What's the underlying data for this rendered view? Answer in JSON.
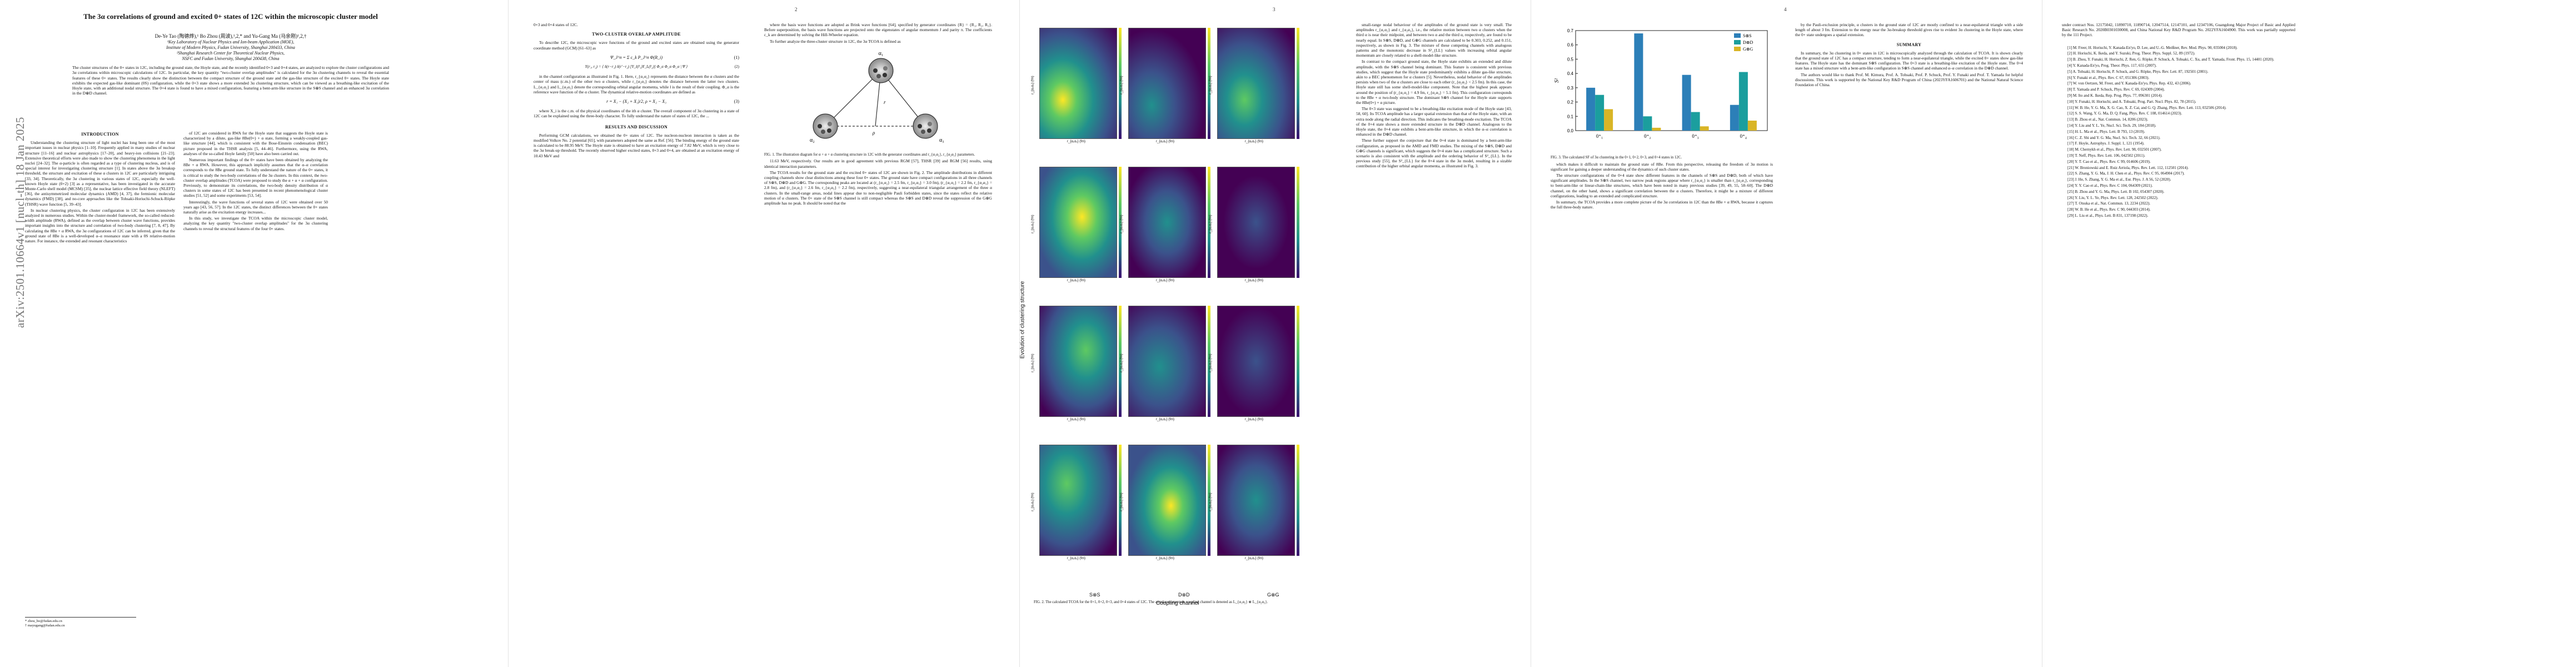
{
  "arxiv_id": "arXiv:2501.10664v1 [nucl-th] 18 Jan 2025",
  "title": "The 3α correlations of ground and excited 0+ states of 12C within the microscopic cluster model",
  "authors": "De-Ye Tao (陶德烨),¹ Bo Zhou (周波),¹,2,* and Yu-Gang Ma (马余刚)¹,2,†",
  "affiliations": [
    "¹Key Laboratory of Nuclear Physics and Ion-beam Application (MOE),",
    "Institute of Modern Physics, Fudan University, Shanghai 200433, China",
    "²Shanghai Research Center for Theoretical Nuclear Physics,",
    "NSFC and Fudan University, Shanghai 200438, China"
  ],
  "abstract": "The cluster structures of the 0+ states in 12C, including the ground state, the Hoyle state, and the recently identified 0+3 and 0+4 states, are analyzed to explore the cluster configurations and 3α correlations within microscopic calculations of 12C. In particular, the key quantity \"two-cluster overlap amplitudes\" is calculated for the 3α clustering channels to reveal the essential features of these 0+ states. The results clearly show the distinction between the compact structure of the ground state and the gas-like structure of the excited 0+ states. The Hoyle state exhibits the expected gas-like dominant (0S) configuration, while the 0+3 state shows a more extended 3α clustering structure, which can be viewed as a breathing-like excitation of the Hoyle state, with an additional nodal structure. The 0+4 state is found to have a mixed configuration, featuring a bent-arm-like structure in the S⊗S channel and an enhanced 3α correlation in the D⊗D channel.",
  "pages": [
    "2",
    "3",
    "4",
    ""
  ],
  "page1": {
    "intro_heading": "INTRODUCTION",
    "intro_paragraphs": [
      "Understanding the clustering structure of light nuclei has long been one of the most important issues in nuclear physics [1–10]. Frequently applied in many studies of nuclear structure [11–16] and nuclear astrophysics [17–20], and heavy-ion collisions [21–23]. Extensive theoretical efforts were also made to show the clustering phenomena in the light nuclei [24–32]. The α-particle is often regarded as a type of clustering nucleus, and is of special interest for investigating clustering structure [1]. In states above the 3α breakup threshold, the structure and excitation of these α clusters in 12C are particularly intriguing [33, 34]. Theoretically, the 3α clustering in various states of 12C, especially the well-known Hoyle state (0+2) [3] as a representative, has been investigated in the accurate Monte-Carlo shell model (MCSM) [35], the nuclear lattice effective field theory (NLEFT) [36], the antisymmetrized molecular dynamics (AMD) [4, 37], the fermionic molecular dynamics (FMD) [38], and no-core approaches like the Tohsaki-Horiuchi-Schuck-Röpke (THSR) wave function [5, 39–43].",
      "In nuclear clustering physics, the cluster configuration in 12C has been extensively analyzed in numerous studies. Within the cluster-model framework, the so-called reduced-width amplitude (RWA), defined as the overlap between cluster wave functions, provides important insights into the structure and correlation of two-body clustering [7, 8, 47]. By calculating the 8Be + α RWA, the 3α configurations of 12C can be inferred, given that the ground state of 8Be is a well-developed α–α resonance state with a 0S relative-motion nature. For instance, the extended and resonant characteristics"
    ],
    "footnotes": [
      "* zhou_bo@fudan.edu.cn",
      "† mayugang@fudan.edu.cn"
    ]
  },
  "page2": {
    "col1_paragraphs": [
      "of 12C are considered in RWA for the Hoyle state that suggests the Hoyle state is characterized by a dilute, gas-like 8Be(0+) + α state, forming a weakly-coupled gas-like structure [44], which is consistent with the Bose-Einstein condensation (BEC) picture proposed in the THSR analysis [5, 44–46]. Furthermore, using the RWA, analyses of the so-called Hoyle family [50] have also been carried out.",
      "Numerous important findings of the 0+ states have been obtained by analyzing the 8Be + α RWA. However, this approach implicitly assumes that the α–α correlation corresponds to the 8Be ground state. To fully understand the nature of the 0+ states, it is critical to study the two-body correlations of the 3α clusters. In this context, the two-cluster overlap amplitudes (TCOA) were proposed to study the α + α + α configuration. Previously, to demonstrate its correlations, the two-body density distribution of α clusters in some states of 12C has been presented in recent phenomenological cluster studies [51, 52] and some experiments [53, 54].",
      "Interestingly, the wave functions of several states of 12C were obtained over 50 years ago [43, 56, 57]. In the 12C states, the distinct differences between the 0+ states naturally arise as the excitation energy increases...",
      "In this study, we investigate the TCOA within the microscopic cluster model, analyzing the key quantity \"two-cluster overlap amplitudes\" for the 3α clustering channels to reveal the structural features of the four 0+ states."
    ],
    "col2_top_text": "0+3 and 0+4 states of 12C.",
    "tcoa_heading": "TWO-CLUSTER OVERLAP AMPLITUDE",
    "col2_paragraphs": [
      "To describe 12C, the microscopic wave functions of the ground and excited states are obtained using the generator coordinate method (GCM) [61–63] as",
      "in the channel configuration as illustrated in Fig. 1. Here, r_{α₁α₂} represents the distance between the α clusters and the center of mass (c.m.) of the other two α clusters, while r_{α₂α₃} denotes the distance between the latter two clusters. L_{α₁α₂} and L_{α₂α₃} denote the corresponding orbital angular momenta, while l is the result of their coupling. Φ_α is the reference wave function of the α cluster. The dynamical relative-motion coordinates are defined as"
    ],
    "eq1": "Ψ_J^π = Σ c_k P_J^π Φ(R_i)",
    "eq1_no": "(1)",
    "eq2": "Y(r₁, r₂) = ⟨ δ(r−r₁) δ(r′−r₂) [Y_l(r̂₁)Y_L(r̂₂)] Φ_α Φ_α Φ_α | Ψ ⟩",
    "eq2_no": "(2)",
    "eq3": "r = X₁ − (X₂ + X₃)/2,   ρ = X₂ − X₃",
    "eq3_no": "(3)",
    "results_heading": "RESULTS AND DISCUSSION",
    "results_paragraphs": [
      "where X_i is the c.m. of the physical coordinates of the ith α cluster. The overall component of 3α clustering in a state of 12C can be explained using the three-body character. To fully understand the nature of states of 12C, the ...",
      "Performing GCM calculations, we obtained the 0+ states of 12C. The nucleon-nucleon interaction is taken as the modified Volkov No. 2 potential [65], with parameters adopted the same as Ref. [56]. The binding energy of the ground state is calculated to be 88.95 MeV. The Hoyle state is obtained to have an excitation energy of 7.82 MeV, which is very close to the 3α break-up threshold. The recently observed higher excited states, 0+3 and 0+4, are obtained at an excitation energy of 10.43 MeV and"
    ],
    "col3_paragraphs": [
      "where the basis wave functions are adopted as Brink wave functions [64], specified by generator coordinates {R} = {R₁, R₂, R₃}. Before superposition, the basis wave functions are projected onto the eigenstates of angular momentum J and parity π. The coefficients c_k are determined by solving the Hill-Wheeler equation.",
      "To further analyze the three-cluster structure in 12C, the 3α TCOA is defined as"
    ],
    "fig1_caption": "FIG. 1. The illustration diagram for α + α + α clustering structure in 12C with the generator coordinates and r_{α₁α₂}, r_{α₂α₃} parameters.",
    "col3_paragraphs_b": [
      "11.63 MeV, respectively. Our results are in good agreement with previous RGM [57], THSR [39] and RGM [56] results, using identical interaction parameters.",
      "The TCOA results for the ground state and the excited 0+ states of 12C are shown in Fig. 2. The amplitude distributions in different coupling channels show clear distinctions among these four 0+ states. The ground state have compact configurations in all three channels of S⊗S, D⊗D and G⊗G. The corresponding peaks are located at (r_{α₁α₂} = 2.5 fm, r_{α₂α₃} = 3.0 fm), (r_{α₁α₂} = 2.2 fm, r_{α₂α₃} = 2.8 fm), and (r_{α₁α₂} = 2.6 fm, r_{α₂α₃} = 2.2 fm), respectively, suggesting a near-equilateral triangular arrangement of the three α clusters. In the small-range areas, nodal lines appear due to non-negligible Pauli forbidden states, since the states reflect the relative motion of α clusters. The 0+ state of the S⊗S channel is still compact whereas the S⊗S and D⊗D reveal the suppression of the G⊗G amplitude has no peak. It should be noted that the"
    ]
  },
  "page3": {
    "fig2": {
      "y_label": "Evolution of clustering structure",
      "x_label": "Coupling channel",
      "x_categories": [
        "S⊗S",
        "D⊗D",
        "G⊗G"
      ],
      "row_label": "r_{α₂α₃} (fm)",
      "col_label": "r_{α₁α₂} (fm)",
      "caption": "FIG. 2. The calculated TCOA for the 0+1, 0+2, 0+3, and 0+4 states of 12C. The angular momentum coupling channel is denoted as L_{α₁α₂} ⊗ L_{α₂α₃}."
    },
    "col_paragraphs": [
      "small-range nodal behaviour of the amplitudes of the ground state is very small. The amplitudes r_{α₁α₂} and r_{α₂α₃}, i.e., the relative motion between two α clusters when the third α is near their midpoint, and between two α and the third α, respectively, are found to be nearly equal. In S⊗S, D⊗D, and G⊗G channels are calculated to be 0.303, 0.252, and 0.151, respectively, as shown in Fig. 3. The mixture of these competing channels with analogous patterns and the monotonic decrease in S²_{LL} values with increasing orbital angular momentum are closely related to a shell-model-like structure.",
      "In contrast to the compact ground state, the Hoyle state exhibits an extended and dilute amplitude, with the S⊗S channel being dominant. This feature is consistent with previous studies, which suggest that the Hoyle state predominantly exhibits a dilute gas-like structure, akin to a BEC phenomenon for α clusters [5]. Nevertheless, nodal behavior of the amplitudes persists when two of the α clusters are close to each other (r_{α₂α₃} < 2.5 fm). In this case, the Hoyle state still has some shell-model-like component. Note that the highest peak appears around the position of (r_{α₁α₂} = 4.9 fm, r_{α₂α₃} = 5.1 fm). This configuration corresponds to the 8Be + α two-body structure. The dominant S⊗S channel for the Hoyle state supports the 8Be(0+) + α picture.",
      "The 0+3 state was suggested to be a breathing-like excitation mode of the Hoyle state [43, 58, 60]. Its TCOA amplitude has a larger spatial extension than that of the Hoyle state, with an extra node along the radial direction. This indicates the breathing-mode excitation. The TCOA of the 0+4 state shows a more extended structure in the D⊗D channel. Analogous to the Hoyle state, the 0+4 state exhibits a bent-arm-like structure, in which the α–α correlation is enhanced in the D⊗D channel.",
      "These further support the conjecture that the 0+4 state is dominated by a bent-arm-like configuration, as proposed in the AMD and FMD studies. The mixing of the S⊗S, D⊗D and G⊗G channels is significant, which suggests the 0+4 state has a complicated structure. Such a scenario is also consistent with the amplitude and the ordering behavior of S²_{LL}. In the previous study [55], the S²_{LL} for the 0+4 state in the 3α model, resulting in a sizable contribution of the higher orbital angular momenta, as illustrated in Fig. 3."
    ]
  },
  "page4": {
    "chart_data": {
      "type": "bar",
      "title": "",
      "ylabel": "S²",
      "categories": [
        "0⁺₁",
        "0⁺₂",
        "0⁺₃",
        "0⁺₄"
      ],
      "series": [
        {
          "name": "S⊗S",
          "values": [
            0.3,
            0.68,
            0.39,
            0.18
          ],
          "color": "#2c7fb8"
        },
        {
          "name": "D⊗D",
          "values": [
            0.25,
            0.1,
            0.13,
            0.41
          ],
          "color": "#1b9e9e"
        },
        {
          "name": "G⊗G",
          "values": [
            0.15,
            0.02,
            0.03,
            0.07
          ],
          "color": "#d9b526"
        }
      ],
      "ylim": [
        0,
        0.7
      ],
      "yticks": [
        0.0,
        0.1,
        0.2,
        0.3,
        0.4,
        0.5,
        0.6,
        0.7
      ],
      "legend": "top-right",
      "grid": false
    },
    "fig3_caption": "FIG. 3. The calculated SF of 3α clustering in the 0+1, 0+2, 0+3, and 0+4 states in 12C.",
    "col1_paragraphs": [
      "which makes it difficult to maintain the ground state of 8Be. From this perspective, releasing the freedom of 3α motion is significant for gaining a deeper understanding of the dynamics of such cluster states.",
      "The structure configurations of the 0+4 state show different features in the channels of S⊗S and D⊗D, both of which have significant amplitudes. In the S⊗S channel, two narrow peak regions appear where r_{α₁α₂} is smaller than r_{α₂α₃}, corresponding to bent-arm-like or linear-chain-like structures, which have been noted in many previous studies [39, 49, 55, 58–60]. The D⊗D channel, on the other hand, shows a significant correlation between the α clusters. Therefore, it might be a mixture of different configurations, leading to an extended and complicated structure.",
      "In summary, the TCOA provides a more complete picture of the 3α correlations in 12C than the 8Be + α RWA, because it captures the full three-body nature."
    ],
    "summary_heading": "SUMMARY",
    "col2_paragraphs": [
      "by the Pauli-exclusion principle, α clusters in the ground state of 12C are mostly confined to a near-equilateral triangle with a side length of about 3 fm. Extension to the energy near the 3α-breakup threshold gives rise to evident 3α clustering in the Hoyle state, where the 0+ state undergoes a spatial extension.",
      "In summary, the 3α clustering in 0+ states in 12C is microscopically analyzed through the calculation of TCOA. It is shown clearly that the ground state of 12C has a compact structure, tending to form a near-equilateral triangle, while the excited 0+ states show gas-like features. The Hoyle state has the dominant S⊗S configuration. The 0+3 state is a breathing-like excitation of the Hoyle state. The 0+4 state has a mixed structure with a bent-arm-like configuration in S⊗S channel and enhanced α–α correlation in the D⊗D channel.",
      "The authors would like to thank Prof. M. Kimura, Prof. A. Tohsaki, Prof. P. Schuck, Prof. Y. Funaki and Prof. T. Yamada for helpful discussions. This work is supported by the National Key R&D Program of China (2023YFA1606701) and the National Natural Science Foundation of China."
    ],
    "funding_text": "under contract Nos. 12175042, 11890710, 11890714, 12047514, 12147101, and 12347106, Guangdong Major Project of Basic and Applied Basic Research No. 2020B0301030008, and China National Key R&D Program No. 2022YFA1604900. This work was partially supported by the 111 Project.",
    "references": [
      "[1] M. Freer, H. Horiuchi, Y. Kanada-En'yo, D. Lee, and U.-G. Meißner, Rev. Mod. Phys. 90, 035004 (2018).",
      "[2] H. Horiuchi, K. Ikeda, and Y. Suzuki, Prog. Theor. Phys. Suppl. 52, 89 (1972).",
      "[3] B. Zhou, Y. Funaki, H. Horiuchi, Z. Ren, G. Röpke, P. Schuck, A. Tohsaki, C. Xu, and T. Yamada, Front. Phys. 15, 14401 (2020).",
      "[4] Y. Kanada-En'yo, Prog. Theor. Phys. 117, 655 (2007).",
      "[5] A. Tohsaki, H. Horiuchi, P. Schuck, and G. Röpke, Phys. Rev. Lett. 87, 192501 (2001).",
      "[6] Y. Funaki et al., Phys. Rev. C 67, 051306 (2003).",
      "[7] W. von Oertzen, M. Freer, and Y. Kanada-En'yo, Phys. Rep. 432, 43 (2006).",
      "[8] T. Yamada and P. Schuck, Phys. Rev. C 69, 024309 (2004).",
      "[9] M. Ito and K. Ikeda, Rep. Prog. Phys. 77, 096301 (2014).",
      "[10] Y. Funaki, H. Horiuchi, and A. Tohsaki, Prog. Part. Nucl. Phys. 82, 78 (2015).",
      "[11] W. B. He, Y. G. Ma, X. G. Cao, X. Z. Cai, and G. Q. Zhang, Phys. Rev. Lett. 113, 032506 (2014).",
      "[12] S. S. Wang, Y. G. Ma, D. Q. Fang, Phys. Rev. C 108, 014614 (2023).",
      "[13] B. Zhou et al., Nat. Commun. 14, 8206 (2023).",
      "[14] Y. Liu and Y. L. Ye, Nucl. Sci. Tech. 29, 184 (2018).",
      "[15] H. L. Ma et al., Phys. Lett. B 793, 13 (2019).",
      "[16] C. Z. Shi and Y. G. Ma, Nucl. Sci. Tech. 32, 66 (2021).",
      "[17] F. Hoyle, Astrophys. J. Suppl. 1, 121 (1954).",
      "[18] M. Chernykh et al., Phys. Rev. Lett. 98, 032501 (2007).",
      "[19] T. Neff, Phys. Rev. Lett. 106, 042502 (2011).",
      "[20] Y. T. Cao et al., Phys. Rev. C 99, 014606 (2019).",
      "[21] W. Broniowski and E. Ruiz Arriola, Phys. Rev. Lett. 112, 112501 (2014).",
      "[22] S. Zhang, Y. G. Ma, J. H. Chen et al., Phys. Rev. C 95, 064904 (2017).",
      "[23] J. He, S. Zhang, Y. G. Ma et al., Eur. Phys. J. A 56, 52 (2020).",
      "[24] Y. Y. Cao et al., Phys. Rev. C 104, 064309 (2021).",
      "[25] B. Zhou and Y. G. Ma, Phys. Lett. B 102, 054307 (2020).",
      "[26] Y. Liu, Y. L. Ye, Phys. Rev. Lett. 128, 242502 (2022).",
      "[27] T. Otsuka et al., Nat. Commun. 13, 2234 (2022).",
      "[28] W. B. He et al., Phys. Rev. C 90, 044303 (2014).",
      "[29] L. Liu et al., Phys. Lett. B 831, 137198 (2022)."
    ]
  }
}
